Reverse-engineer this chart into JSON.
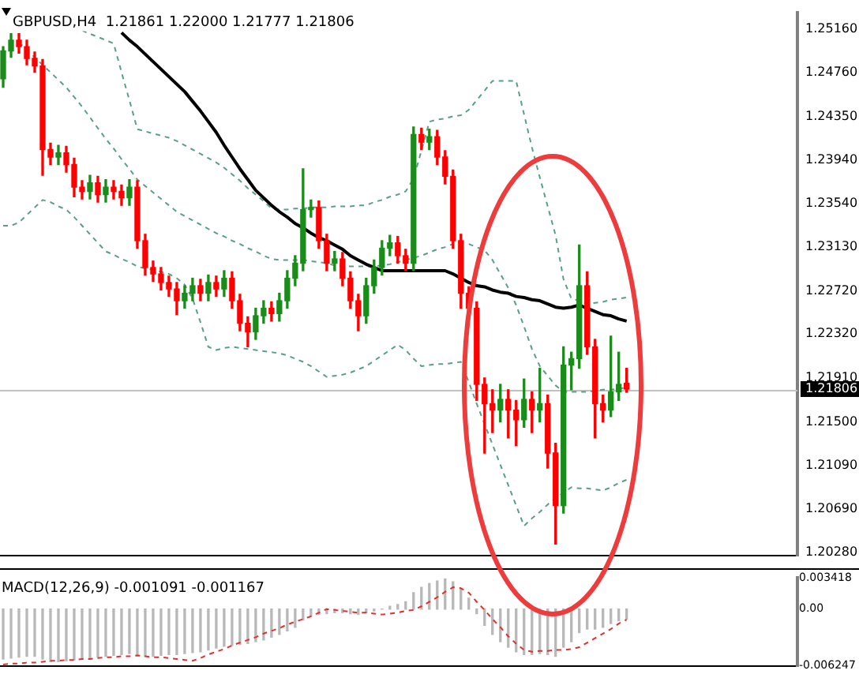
{
  "chart_data": [
    {
      "type": "candlestick",
      "title": "GBPUSD,H4  1.21861 1.22000 1.21777 1.21806",
      "categories": [
        null,
        null,
        null,
        null,
        null,
        null,
        null,
        null,
        null,
        null,
        null,
        null,
        null,
        null,
        null,
        null,
        null,
        null,
        null,
        null,
        null,
        null,
        null,
        null,
        null,
        null,
        null,
        null,
        null,
        null,
        null,
        null,
        null,
        null,
        null,
        null,
        null,
        null,
        null,
        null,
        null,
        null,
        null,
        null,
        null,
        null,
        null,
        null,
        null,
        null,
        null,
        null,
        null,
        null,
        null,
        null,
        null,
        null,
        null,
        null,
        null,
        null,
        null,
        null,
        null,
        null,
        null,
        null,
        null,
        null,
        null,
        null,
        null,
        null,
        null,
        null,
        null,
        null,
        null,
        null
      ],
      "ohlc": [
        [
          1.247,
          1.25,
          1.2462,
          1.2496
        ],
        [
          1.2496,
          1.2512,
          1.249,
          1.2506
        ],
        [
          1.2506,
          1.2512,
          1.2494,
          1.25
        ],
        [
          1.25,
          1.2506,
          1.2483,
          1.2489
        ],
        [
          1.2489,
          1.2495,
          1.2476,
          1.2482
        ],
        [
          1.2482,
          1.2488,
          1.238,
          1.2404
        ],
        [
          1.2404,
          1.241,
          1.239,
          1.2397
        ],
        [
          1.2397,
          1.2408,
          1.239,
          1.2401
        ],
        [
          1.2401,
          1.2407,
          1.2383,
          1.239
        ],
        [
          1.239,
          1.2396,
          1.236,
          1.2369
        ],
        [
          1.2369,
          1.2375,
          1.2358,
          1.2365
        ],
        [
          1.2365,
          1.238,
          1.2358,
          1.2373
        ],
        [
          1.2373,
          1.2379,
          1.2355,
          1.2362
        ],
        [
          1.2362,
          1.2376,
          1.2355,
          1.2369
        ],
        [
          1.2369,
          1.2375,
          1.2358,
          1.2365
        ],
        [
          1.2365,
          1.2371,
          1.2352,
          1.2359
        ],
        [
          1.2359,
          1.2376,
          1.2352,
          1.2369
        ],
        [
          1.2369,
          1.2375,
          1.2312,
          1.2319
        ],
        [
          1.2319,
          1.2325,
          1.2287,
          1.2294
        ],
        [
          1.2294,
          1.23,
          1.2281,
          1.2288
        ],
        [
          1.2288,
          1.2294,
          1.2273,
          1.228
        ],
        [
          1.228,
          1.2286,
          1.2267,
          1.2274
        ],
        [
          1.2274,
          1.228,
          1.225,
          1.2263
        ],
        [
          1.2263,
          1.2277,
          1.2256,
          1.227
        ],
        [
          1.227,
          1.2284,
          1.2263,
          1.2277
        ],
        [
          1.2277,
          1.2283,
          1.2263,
          1.227
        ],
        [
          1.227,
          1.2287,
          1.2263,
          1.228
        ],
        [
          1.228,
          1.2286,
          1.2267,
          1.2274
        ],
        [
          1.2274,
          1.2291,
          1.2267,
          1.2284
        ],
        [
          1.2284,
          1.229,
          1.2256,
          1.2263
        ],
        [
          1.2263,
          1.2269,
          1.2235,
          1.2242
        ],
        [
          1.2242,
          1.2248,
          1.222,
          1.2234
        ],
        [
          1.2234,
          1.2256,
          1.2227,
          1.2249
        ],
        [
          1.2249,
          1.2263,
          1.2242,
          1.2256
        ],
        [
          1.2256,
          1.2262,
          1.2244,
          1.2251
        ],
        [
          1.2251,
          1.227,
          1.2244,
          1.2263
        ],
        [
          1.2263,
          1.2291,
          1.2256,
          1.2284
        ],
        [
          1.2284,
          1.2305,
          1.2277,
          1.2298
        ],
        [
          1.2298,
          1.2386,
          1.2291,
          1.2348
        ],
        [
          1.2348,
          1.2357,
          1.2341,
          1.235
        ],
        [
          1.235,
          1.2356,
          1.2312,
          1.2319
        ],
        [
          1.2319,
          1.2325,
          1.2291,
          1.2298
        ],
        [
          1.2298,
          1.2309,
          1.2291,
          1.2302
        ],
        [
          1.2302,
          1.2308,
          1.2277,
          1.2284
        ],
        [
          1.2284,
          1.229,
          1.2256,
          1.2263
        ],
        [
          1.2263,
          1.2269,
          1.2235,
          1.2249
        ],
        [
          1.2249,
          1.2284,
          1.2242,
          1.2277
        ],
        [
          1.2277,
          1.2301,
          1.227,
          1.2294
        ],
        [
          1.2294,
          1.2319,
          1.2287,
          1.2312
        ],
        [
          1.2312,
          1.2324,
          1.2305,
          1.2317
        ],
        [
          1.2317,
          1.2323,
          1.2298,
          1.2305
        ],
        [
          1.2305,
          1.2311,
          1.2291,
          1.2298
        ],
        [
          1.2298,
          1.2425,
          1.2291,
          1.2418
        ],
        [
          1.2418,
          1.2424,
          1.2404,
          1.2411
        ],
        [
          1.2411,
          1.2423,
          1.2404,
          1.2416
        ],
        [
          1.2416,
          1.2422,
          1.239,
          1.2397
        ],
        [
          1.2397,
          1.2403,
          1.2372,
          1.2379
        ],
        [
          1.2379,
          1.2385,
          1.2312,
          1.2319
        ],
        [
          1.2319,
          1.2325,
          1.2256,
          1.227
        ],
        [
          1.227,
          1.2276,
          1.2249,
          1.2256
        ],
        [
          1.2256,
          1.2262,
          1.217,
          1.2185
        ],
        [
          1.2185,
          1.2191,
          1.2121,
          1.2167
        ],
        [
          1.2167,
          1.218,
          1.214,
          1.2161
        ],
        [
          1.2161,
          1.2185,
          1.215,
          1.2171
        ],
        [
          1.2171,
          1.218,
          1.2135,
          1.2161
        ],
        [
          1.2161,
          1.217,
          1.2128,
          1.2152
        ],
        [
          1.2152,
          1.219,
          1.2145,
          1.2171
        ],
        [
          1.2171,
          1.2178,
          1.214,
          1.2161
        ],
        [
          1.2161,
          1.22,
          1.215,
          1.2167
        ],
        [
          1.2167,
          1.2175,
          1.2107,
          1.2121
        ],
        [
          1.2121,
          1.213,
          1.2036,
          1.2072
        ],
        [
          1.2072,
          1.222,
          1.2065,
          1.2203
        ],
        [
          1.2203,
          1.2215,
          1.218,
          1.2209
        ],
        [
          1.2209,
          1.2315,
          1.22,
          1.2277
        ],
        [
          1.2277,
          1.229,
          1.2213,
          1.222
        ],
        [
          1.222,
          1.2227,
          1.2135,
          1.2167
        ],
        [
          1.2167,
          1.2175,
          1.215,
          1.2161
        ],
        [
          1.2161,
          1.223,
          1.2155,
          1.2178
        ],
        [
          1.2178,
          1.2215,
          1.217,
          1.2185
        ],
        [
          1.21861,
          1.22,
          1.21777,
          1.21806
        ]
      ],
      "colors": [
        "#1a8c1a",
        "#1a8c1a",
        "#ff0000",
        "#ff0000",
        "#ff0000",
        "#ff0000",
        "#ff0000",
        "#1a8c1a",
        "#ff0000",
        "#ff0000",
        "#ff0000",
        "#1a8c1a",
        "#ff0000",
        "#1a8c1a",
        "#ff0000",
        "#ff0000",
        "#1a8c1a",
        "#ff0000",
        "#ff0000",
        "#ff0000",
        "#ff0000",
        "#ff0000",
        "#ff0000",
        "#1a8c1a",
        "#1a8c1a",
        "#ff0000",
        "#1a8c1a",
        "#ff0000",
        "#1a8c1a",
        "#ff0000",
        "#ff0000",
        "#ff0000",
        "#1a8c1a",
        "#1a8c1a",
        "#ff0000",
        "#1a8c1a",
        "#1a8c1a",
        "#1a8c1a",
        "#1a8c1a",
        "#1a8c1a",
        "#ff0000",
        "#ff0000",
        "#1a8c1a",
        "#ff0000",
        "#ff0000",
        "#ff0000",
        "#1a8c1a",
        "#1a8c1a",
        "#1a8c1a",
        "#1a8c1a",
        "#ff0000",
        "#ff0000",
        "#1a8c1a",
        "#ff0000",
        "#1a8c1a",
        "#ff0000",
        "#ff0000",
        "#ff0000",
        "#ff0000",
        "#ff0000",
        "#ff0000",
        "#ff0000",
        "#ff0000",
        "#1a8c1a",
        "#ff0000",
        "#ff0000",
        "#1a8c1a",
        "#ff0000",
        "#1a8c1a",
        "#ff0000",
        "#ff0000",
        "#1a8c1a",
        "#1a8c1a",
        "#1a8c1a",
        "#ff0000",
        "#ff0000",
        "#ff0000",
        "#1a8c1a",
        "#1a8c1a",
        "#ff0000"
      ],
      "series": [
        {
          "type": "line",
          "color": "#000000",
          "values": [
            null,
            null,
            null,
            null,
            null,
            null,
            null,
            null,
            null,
            null,
            null,
            null,
            null,
            null,
            null,
            1.2513,
            1.2506,
            1.25,
            1.2493,
            1.2486,
            1.2479,
            1.2472,
            1.2465,
            1.2458,
            1.2449,
            1.244,
            1.243,
            1.242,
            1.2408,
            1.2397,
            1.2386,
            1.2376,
            1.2366,
            1.2359,
            1.2352,
            1.2346,
            1.2341,
            1.2335,
            1.2331,
            1.2326,
            1.2322,
            1.2319,
            1.2315,
            1.2311,
            1.2305,
            1.2301,
            1.2297,
            1.2294,
            1.2291,
            1.2291,
            1.2291,
            1.2291,
            1.2291,
            1.2291,
            1.2291,
            1.2291,
            1.2291,
            1.2288,
            1.2284,
            1.228,
            1.2277,
            1.2276,
            1.2273,
            1.2271,
            1.227,
            1.2267,
            1.2266,
            1.2264,
            1.2263,
            1.226,
            1.2257,
            1.2256,
            1.2257,
            1.2259,
            1.2256,
            1.2253,
            1.225,
            1.2249,
            1.2246,
            1.2244
          ]
        },
        {
          "type": "line",
          "color": "#5a9e8a",
          "line_style": "dashed",
          "values": [
            null,
            null,
            null,
            null,
            null,
            null,
            null,
            null,
            null,
            null,
            1.2515,
            1.2512,
            1.2509,
            1.2506,
            1.2503,
            1.2476,
            1.245,
            1.2423,
            1.2421,
            1.2419,
            1.2417,
            1.2415,
            1.2412,
            1.2408,
            1.2404,
            1.24,
            1.2396,
            1.2392,
            1.2387,
            1.2381,
            1.2375,
            1.2368,
            1.2362,
            1.2356,
            1.2349,
            1.2348,
            1.2348,
            1.2349,
            1.2349,
            1.235,
            1.235,
            1.235,
            1.2351,
            1.2351,
            1.2351,
            1.2352,
            1.2352,
            1.2355,
            1.2357,
            1.236,
            1.2362,
            1.2365,
            1.2377,
            1.2403,
            1.243,
            1.2432,
            1.2433,
            1.2435,
            1.2436,
            1.2441,
            1.245,
            1.2459,
            1.2468,
            1.2468,
            1.2468,
            1.2468,
            1.2437,
            1.2406,
            1.2378,
            1.2351,
            1.2324,
            1.2283,
            1.2265,
            1.2263,
            1.226,
            1.2261,
            1.2262,
            1.2264,
            1.2265,
            1.2266
          ]
        },
        {
          "type": "line",
          "color": "#5a9e8a",
          "line_style": "dashed",
          "values": [
            null,
            null,
            1.2504,
            1.2497,
            1.249,
            1.2483,
            1.2476,
            1.2469,
            1.2462,
            1.2453,
            1.2444,
            1.2434,
            1.2424,
            1.2414,
            1.2405,
            1.2395,
            1.2386,
            1.2376,
            1.237,
            1.2364,
            1.2358,
            1.2352,
            1.2346,
            1.2342,
            1.2338,
            1.2334,
            1.233,
            1.2326,
            1.2323,
            1.2319,
            1.2316,
            1.2312,
            1.2309,
            1.2305,
            1.2302,
            1.2301,
            1.2301,
            1.2301,
            1.2301,
            1.23,
            1.2299,
            1.2298,
            1.2296,
            1.2295,
            1.2295,
            1.2295,
            1.2295,
            1.2295,
            1.2296,
            1.2297,
            1.2299,
            1.2301,
            1.2303,
            1.2305,
            1.2308,
            1.2311,
            1.2313,
            1.2316,
            null,
            1.2316,
            1.2313,
            1.231,
            1.2301,
            1.2288,
            1.2275,
            1.2259,
            1.2239,
            1.2218,
            1.2202,
            1.2193,
            1.2184,
            1.2178,
            1.2178,
            1.2178,
            1.2178,
            1.2179,
            1.218,
            1.218,
            1.2181,
            1.2182
          ]
        },
        {
          "type": "line",
          "color": "#5a9e8a",
          "line_style": "dashed",
          "values": [
            1.2333,
            1.2333,
            1.2336,
            1.2343,
            1.235,
            1.2357,
            1.2355,
            1.2351,
            1.2348,
            1.2341,
            1.2333,
            1.2325,
            1.2317,
            1.2309,
            1.2306,
            1.2302,
            1.2299,
            1.2295,
            1.2293,
            1.2292,
            1.229,
            1.2288,
            1.2284,
            1.2278,
            1.2265,
            1.2243,
            1.222,
            1.2217,
            1.2219,
            1.222,
            1.2219,
            1.2218,
            1.2217,
            1.2216,
            1.2215,
            1.2214,
            1.2212,
            1.2209,
            1.2206,
            1.2202,
            1.2197,
            1.2192,
            1.2193,
            1.2194,
            1.2196,
            1.2199,
            1.2202,
            1.2207,
            1.2212,
            1.2217,
            1.2222,
            1.2217,
            1.2209,
            1.2202,
            1.2203,
            1.2204,
            1.2204,
            1.2205,
            1.2206,
            1.2187,
            1.2167,
            1.2148,
            1.2129,
            1.211,
            1.2091,
            1.2072,
            1.2053,
            1.206,
            1.2066,
            1.2073,
            1.2079,
            1.2084,
            1.2089,
            1.2088,
            1.2088,
            1.2087,
            1.2086,
            1.2089,
            1.2093,
            1.2096
          ]
        }
      ],
      "ylim": [
        1.2025,
        1.2532
      ],
      "yticks": [
        {
          "value": 1.2516,
          "label": "1.25160"
        },
        {
          "value": 1.2476,
          "label": "1.24760"
        },
        {
          "value": 1.2435,
          "label": "1.24350"
        },
        {
          "value": 1.2394,
          "label": "1.23940"
        },
        {
          "value": 1.2354,
          "label": "1.23540"
        },
        {
          "value": 1.2313,
          "label": "1.23130"
        },
        {
          "value": 1.2272,
          "label": "1.22720"
        },
        {
          "value": 1.2232,
          "label": "1.22320"
        },
        {
          "value": 1.2191,
          "label": "1.21910"
        },
        {
          "value": 1.215,
          "label": "1.21500"
        },
        {
          "value": 1.2109,
          "label": "1.21090"
        },
        {
          "value": 1.2069,
          "label": "1.20690"
        },
        {
          "value": 1.2028,
          "label": "1.20280"
        }
      ],
      "tick_labels": "y",
      "ref_lines": [
        {
          "axis": "y",
          "value": 1.21806,
          "label": "1.21806",
          "color": "#c0c0c0",
          "line_style": "solid"
        }
      ]
    },
    {
      "type": "bar",
      "title": "MACD(12,26,9) -0.001091 -0.001167",
      "categories": [
        null,
        null,
        null,
        null,
        null,
        null,
        null,
        null,
        null,
        null,
        null,
        null,
        null,
        null,
        null,
        null,
        null,
        null,
        null,
        null,
        null,
        null,
        null,
        null,
        null,
        null,
        null,
        null,
        null,
        null,
        null,
        null,
        null,
        null,
        null,
        null,
        null,
        null,
        null,
        null,
        null,
        null,
        null,
        null,
        null,
        null,
        null,
        null,
        null,
        null,
        null,
        null,
        null,
        null,
        null,
        null,
        null,
        null,
        null,
        null,
        null,
        null,
        null,
        null,
        null,
        null,
        null,
        null,
        null,
        null,
        null,
        null,
        null,
        null,
        null,
        null,
        null,
        null,
        null,
        null
      ],
      "series": [
        {
          "type": "bar",
          "color": "#b8b8b8",
          "values": [
            -0.0055,
            -0.0054,
            -0.0053,
            -0.0052,
            -0.0052,
            -0.0055,
            -0.0058,
            -0.0058,
            -0.0057,
            -0.0056,
            -0.0055,
            -0.0054,
            -0.0053,
            -0.0052,
            -0.0051,
            -0.005,
            -0.0049,
            -0.005,
            -0.0052,
            -0.0052,
            -0.0051,
            -0.005,
            -0.005,
            -0.0049,
            -0.0048,
            -0.0047,
            -0.0045,
            -0.0043,
            -0.0041,
            -0.004,
            -0.0039,
            -0.0038,
            -0.0036,
            -0.0034,
            -0.0031,
            -0.0028,
            -0.0024,
            -0.002,
            -0.0012,
            -0.0008,
            -0.0006,
            -0.0005,
            -0.0004,
            -0.0004,
            -0.0005,
            -0.0006,
            -0.0004,
            -0.0002,
            0.0,
            0.0003,
            0.0005,
            0.0008,
            0.0018,
            0.0024,
            0.0028,
            0.0031,
            0.0033,
            0.003,
            0.0022,
            0.0012,
            -0.0005,
            -0.0018,
            -0.0028,
            -0.0036,
            -0.0042,
            -0.0047,
            -0.005,
            -0.005,
            -0.0049,
            -0.005,
            -0.0052,
            -0.0042,
            -0.0036,
            -0.0026,
            -0.0022,
            -0.0022,
            -0.002,
            -0.0016,
            -0.0013,
            -0.001091
          ]
        },
        {
          "type": "line",
          "color": "#e03030",
          "line_style": "dashed",
          "values": [
            -0.0061,
            -0.006,
            -0.006,
            -0.0059,
            -0.0059,
            -0.0058,
            -0.0057,
            -0.0057,
            -0.0056,
            -0.0056,
            -0.0055,
            -0.0055,
            -0.0054,
            -0.0053,
            -0.0053,
            -0.0052,
            -0.0052,
            -0.0051,
            -0.0052,
            -0.0053,
            -0.0053,
            -0.0054,
            -0.0055,
            -0.0056,
            -0.0057,
            -0.0054,
            -0.005,
            -0.0047,
            -0.0044,
            -0.004,
            -0.0037,
            -0.0034,
            -0.0031,
            -0.0027,
            -0.0024,
            -0.0021,
            -0.0017,
            -0.0014,
            -0.0011,
            -0.0008,
            -0.0004,
            0.0,
            -0.0001,
            -0.0002,
            -0.0003,
            -0.0004,
            -0.0004,
            -0.0005,
            -0.0006,
            -0.0005,
            -0.0004,
            -0.0002,
            -0.0001,
            0.0003,
            0.0008,
            0.0013,
            0.0019,
            0.0024,
            0.0023,
            0.0018,
            0.0008,
            -0.0001,
            -0.0011,
            -0.002,
            -0.003,
            -0.0038,
            -0.0045,
            -0.0047,
            -0.0046,
            -0.0046,
            -0.0045,
            -0.0045,
            -0.0044,
            -0.0042,
            -0.0037,
            -0.0032,
            -0.0027,
            -0.0022,
            -0.0016,
            -0.001167
          ]
        }
      ],
      "ylim": [
        -0.006247,
        0.003418
      ],
      "yticks": [
        {
          "value": 0.003418,
          "label": "0.003418"
        },
        {
          "value": 0,
          "label": "0.00"
        },
        {
          "value": -0.006247,
          "label": "-0.006247"
        }
      ],
      "tick_labels": "y"
    }
  ]
}
